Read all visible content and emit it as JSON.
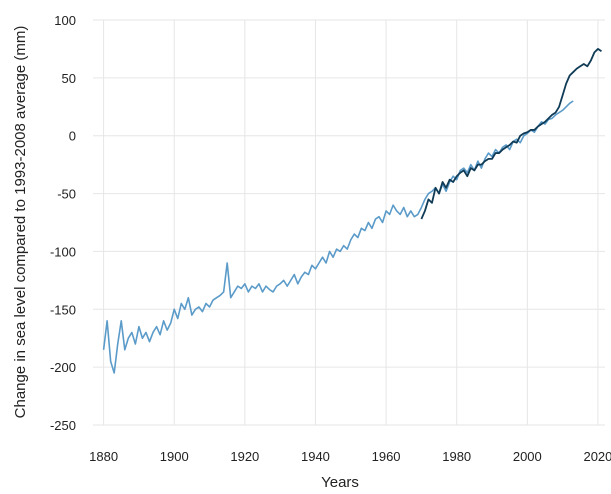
{
  "chart_data": {
    "type": "line",
    "title": "",
    "xlabel": "Years",
    "ylabel": "Change in sea level compared to 1993-2008 average (mm)",
    "xlim": [
      1877,
      2022
    ],
    "ylim": [
      -250,
      100
    ],
    "x_ticks": [
      1880,
      1900,
      1920,
      1940,
      1960,
      1980,
      2000,
      2020
    ],
    "y_ticks": [
      100,
      50,
      0,
      -50,
      -100,
      -150,
      -200,
      -250
    ],
    "grid": true,
    "legend": "none",
    "series": [
      {
        "color": "#5b9bc9",
        "x": [
          1880,
          1881,
          1882,
          1883,
          1884,
          1885,
          1886,
          1887,
          1888,
          1889,
          1890,
          1891,
          1892,
          1893,
          1894,
          1895,
          1896,
          1897,
          1898,
          1899,
          1900,
          1901,
          1902,
          1903,
          1904,
          1905,
          1906,
          1907,
          1908,
          1909,
          1910,
          1911,
          1912,
          1913,
          1914,
          1915,
          1916,
          1917,
          1918,
          1919,
          1920,
          1921,
          1922,
          1923,
          1924,
          1925,
          1926,
          1927,
          1928,
          1929,
          1930,
          1931,
          1932,
          1933,
          1934,
          1935,
          1936,
          1937,
          1938,
          1939,
          1940,
          1941,
          1942,
          1943,
          1944,
          1945,
          1946,
          1947,
          1948,
          1949,
          1950,
          1951,
          1952,
          1953,
          1954,
          1955,
          1956,
          1957,
          1958,
          1959,
          1960,
          1961,
          1962,
          1963,
          1964,
          1965,
          1966,
          1967,
          1968,
          1969,
          1970,
          1971,
          1972,
          1973,
          1974,
          1975,
          1976,
          1977,
          1978,
          1979,
          1980,
          1981,
          1982,
          1983,
          1984,
          1985,
          1986,
          1987,
          1988,
          1989,
          1990,
          1991,
          1992,
          1993,
          1994,
          1995,
          1996,
          1997,
          1998,
          1999,
          2000,
          2001,
          2002,
          2003,
          2004,
          2005,
          2006,
          2007,
          2008,
          2009,
          2010,
          2011,
          2012,
          2013
        ],
        "values": [
          -185,
          -160,
          -195,
          -205,
          -180,
          -160,
          -185,
          -175,
          -170,
          -180,
          -165,
          -175,
          -170,
          -178,
          -170,
          -165,
          -172,
          -160,
          -168,
          -162,
          -150,
          -158,
          -145,
          -150,
          -140,
          -155,
          -150,
          -148,
          -152,
          -145,
          -148,
          -142,
          -140,
          -138,
          -135,
          -110,
          -140,
          -135,
          -130,
          -132,
          -128,
          -135,
          -130,
          -132,
          -128,
          -135,
          -130,
          -133,
          -135,
          -130,
          -128,
          -125,
          -130,
          -125,
          -120,
          -128,
          -122,
          -118,
          -120,
          -112,
          -115,
          -110,
          -105,
          -110,
          -100,
          -105,
          -98,
          -100,
          -95,
          -98,
          -90,
          -85,
          -88,
          -80,
          -82,
          -75,
          -80,
          -72,
          -70,
          -75,
          -65,
          -68,
          -60,
          -65,
          -68,
          -62,
          -70,
          -65,
          -70,
          -68,
          -62,
          -55,
          -50,
          -48,
          -45,
          -50,
          -42,
          -48,
          -40,
          -35,
          -38,
          -30,
          -28,
          -32,
          -25,
          -30,
          -22,
          -28,
          -20,
          -15,
          -18,
          -12,
          -15,
          -10,
          -8,
          -12,
          -5,
          -3,
          -6,
          0,
          2,
          5,
          3,
          8,
          12,
          10,
          14,
          15,
          18,
          20,
          22,
          25,
          28,
          30
        ]
      },
      {
        "color": "#0f3b56",
        "x": [
          1970,
          1971,
          1972,
          1973,
          1974,
          1975,
          1976,
          1977,
          1978,
          1979,
          1980,
          1981,
          1982,
          1983,
          1984,
          1985,
          1986,
          1987,
          1988,
          1989,
          1990,
          1991,
          1992,
          1993,
          1994,
          1995,
          1996,
          1997,
          1998,
          1999,
          2000,
          2001,
          2002,
          2003,
          2004,
          2005,
          2006,
          2007,
          2008,
          2009,
          2010,
          2011,
          2012,
          2013,
          2014,
          2015,
          2016,
          2017,
          2018,
          2019,
          2020,
          2021
        ],
        "values": [
          -72,
          -65,
          -55,
          -58,
          -45,
          -50,
          -40,
          -45,
          -38,
          -40,
          -35,
          -32,
          -30,
          -35,
          -28,
          -30,
          -25,
          -25,
          -22,
          -20,
          -20,
          -15,
          -15,
          -12,
          -10,
          -8,
          -5,
          -6,
          0,
          2,
          3,
          5,
          5,
          8,
          10,
          12,
          15,
          18,
          20,
          25,
          35,
          45,
          52,
          55,
          58,
          60,
          62,
          60,
          65,
          72,
          75,
          73
        ]
      }
    ]
  }
}
